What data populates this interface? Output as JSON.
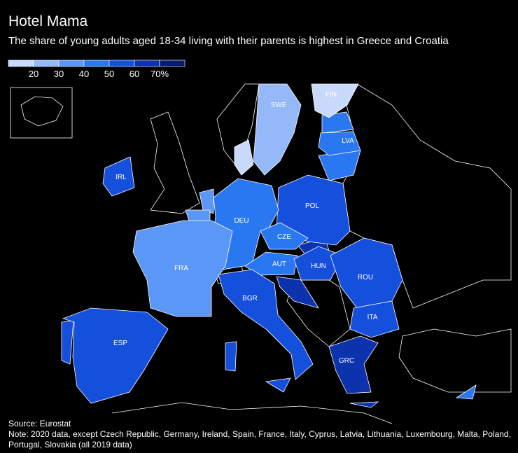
{
  "header": {
    "title": "Hotel Mama",
    "subtitle": "The share of young adults aged 18-34 living with their parents is highest in Greece and Croatia"
  },
  "legend": {
    "colors": [
      "#c9d9fc",
      "#94b8f8",
      "#5a97f6",
      "#2a77f2",
      "#1550dc",
      "#0c32ad",
      "#061c6e"
    ],
    "labels": [
      "20",
      "30",
      "40",
      "50",
      "60",
      "70%"
    ]
  },
  "countries": [
    {
      "label": "SWE",
      "color": "#94b8f8"
    },
    {
      "label": "FIN",
      "color": "#c9d9fc"
    },
    {
      "label": "LVA",
      "color": "#2a77f2"
    },
    {
      "label": "IRL",
      "color": "#1550dc"
    },
    {
      "label": "POL",
      "color": "#1550dc"
    },
    {
      "label": "DEU",
      "color": "#2a77f2"
    },
    {
      "label": "CZE",
      "color": "#2a77f2"
    },
    {
      "label": "FRA",
      "color": "#5a97f6"
    },
    {
      "label": "AUT",
      "color": "#2a77f2"
    },
    {
      "label": "HUN",
      "color": "#1550dc"
    },
    {
      "label": "ROU",
      "color": "#1550dc"
    },
    {
      "label": "ITA",
      "color": "#1550dc"
    },
    {
      "label": "BGR",
      "color": "#1550dc"
    },
    {
      "label": "ESP",
      "color": "#1550dc"
    },
    {
      "label": "GRC",
      "color": "#0c32ad"
    }
  ],
  "footer": {
    "source": "Source: Eurostat",
    "note": [
      "Note: 2020 data, except Czech Republic, Germany, Ireland, Spain, France, Italy, Cyprus, Latvia, Lithuania, Luxembourg, Malta, Poland,",
      "Portugal, Slovakia (all 2019 data)"
    ]
  }
}
